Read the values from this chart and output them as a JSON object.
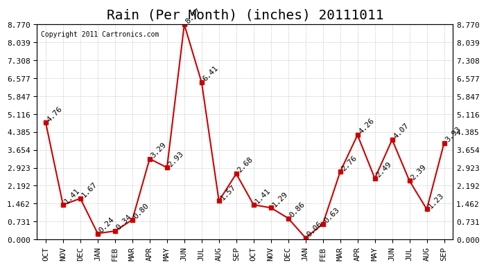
{
  "title": "Rain (Per Month) (inches) 20111011",
  "copyright": "Copyright 2011 Cartronics.com",
  "months": [
    "OCT",
    "NOV",
    "DEC",
    "JAN",
    "FEB",
    "MAR",
    "APR",
    "MAY",
    "JUN",
    "JUL",
    "AUG",
    "SEP",
    "OCT",
    "NOV",
    "DEC",
    "JAN",
    "FEB",
    "MAR",
    "APR",
    "MAY",
    "JUN",
    "JUL",
    "AUG",
    "SEP"
  ],
  "values": [
    4.76,
    1.41,
    1.67,
    0.24,
    0.34,
    0.8,
    3.29,
    2.93,
    8.77,
    6.41,
    1.57,
    2.68,
    1.41,
    1.29,
    0.86,
    0.06,
    0.63,
    2.76,
    4.26,
    2.49,
    4.07,
    2.39,
    1.23,
    3.93
  ],
  "line_color": "#cc0000",
  "marker_color": "#cc0000",
  "bg_color": "#ffffff",
  "plot_bg_color": "#ffffff",
  "grid_color": "#cccccc",
  "yticks": [
    0.0,
    0.731,
    1.462,
    2.192,
    2.923,
    3.654,
    4.385,
    5.116,
    5.847,
    6.577,
    7.308,
    8.039,
    8.77
  ],
  "ymax": 8.77,
  "ymin": 0.0,
  "title_fontsize": 14,
  "label_fontsize": 8,
  "tick_fontsize": 8,
  "copyright_fontsize": 7
}
